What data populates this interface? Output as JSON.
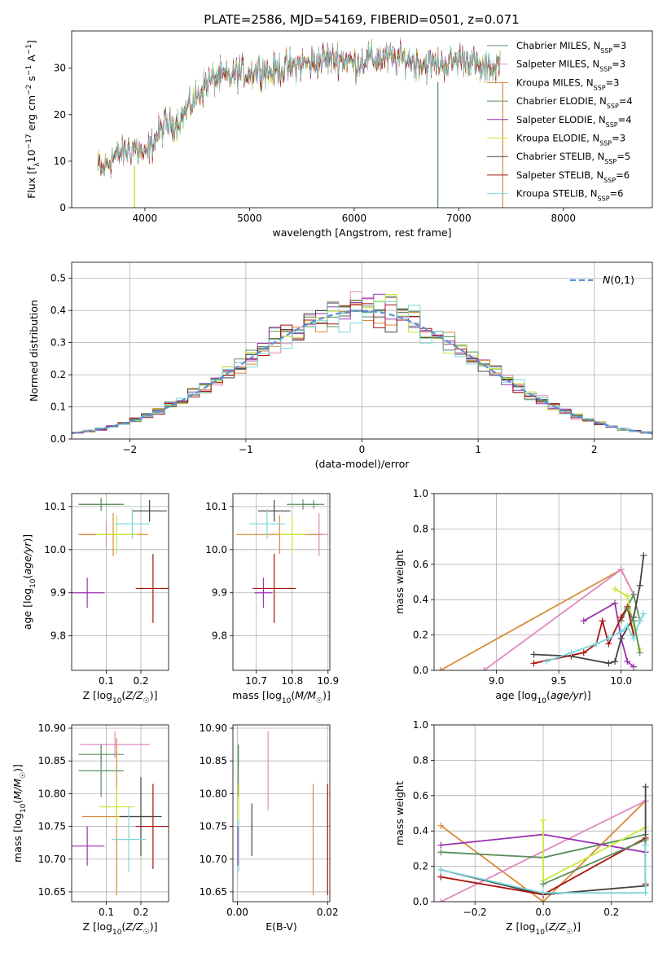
{
  "title": "PLATE=2586, MJD=54169, FIBERID=0501, z=0.071",
  "colors": [
    "#5a8f5c",
    "#e088c0",
    "#d98b38",
    "#5a8f5c",
    "#9b30b0",
    "#c8e838",
    "#444444",
    "#aa1111",
    "#7ad8dc"
  ],
  "chart_data": [
    {
      "id": "spectrum",
      "type": "line",
      "xlabel": "wavelength [Angstrom, rest frame]",
      "ylabel": "Flux [f_λ 10^-17 erg cm^-2 s^-1 A^-1]",
      "xlim": [
        3300,
        8850
      ],
      "ylim": [
        0,
        38
      ],
      "xticks": [
        4000,
        5000,
        6000,
        7000,
        8000
      ],
      "yticks": [
        0,
        10,
        20,
        30
      ],
      "envelope": {
        "x": [
          3550,
          3600,
          3700,
          3800,
          3900,
          4000,
          4100,
          4200,
          4300,
          4400,
          4500,
          4600,
          4700,
          4800,
          4900,
          5000,
          5100,
          5200,
          5300,
          5400,
          5500,
          5600,
          5700,
          5800,
          5900,
          6000,
          6100,
          6200,
          6300,
          6400,
          6500,
          6600,
          6700,
          6800,
          6900,
          7000,
          7100,
          7200,
          7300,
          7400
        ],
        "y": [
          9,
          8,
          11,
          12,
          13,
          11,
          15,
          18,
          18,
          21,
          24,
          27,
          28,
          28,
          29,
          29,
          30,
          29,
          30,
          30,
          31,
          31,
          32,
          32,
          32,
          31,
          32,
          32,
          32,
          32,
          32,
          31,
          31,
          31,
          31,
          32,
          32,
          30,
          30,
          31
        ]
      },
      "legend": [
        {
          "label": "Chabrier MILES, N",
          "sub": "SSP",
          "suffix": "=3"
        },
        {
          "label": "Salpeter MILES, N",
          "sub": "SSP",
          "suffix": "=3"
        },
        {
          "label": "Kroupa MILES, N",
          "sub": "SSP",
          "suffix": "=3"
        },
        {
          "label": "Chabrier ELODIE, N",
          "sub": "SSP",
          "suffix": "=4"
        },
        {
          "label": "Salpeter ELODIE, N",
          "sub": "SSP",
          "suffix": "=4"
        },
        {
          "label": "Kroupa ELODIE, N",
          "sub": "SSP",
          "suffix": "=3"
        },
        {
          "label": "Chabrier STELIB, N",
          "sub": "SSP",
          "suffix": "=5"
        },
        {
          "label": "Salpeter STELIB, N",
          "sub": "SSP",
          "suffix": "=6"
        },
        {
          "label": "Kroupa STELIB, N",
          "sub": "SSP",
          "suffix": "=6"
        }
      ]
    },
    {
      "id": "residuals",
      "type": "histogram",
      "xlabel": "(data-model)/error",
      "ylabel": "Normed distribution",
      "xlim": [
        -2.5,
        2.5
      ],
      "ylim": [
        0,
        0.55
      ],
      "xticks": [
        -2,
        -1,
        0,
        1,
        2
      ],
      "yticks": [
        0.0,
        0.1,
        0.2,
        0.3,
        0.4,
        0.5
      ],
      "bin_width": 0.1,
      "legend": "N(0,1)",
      "grid": true
    },
    {
      "id": "age_vs_z",
      "type": "errorbar",
      "xlabel": "Z [log10(Z/Z☉)]",
      "ylabel": "age [log10(age/yr)]",
      "xlim": [
        0.0,
        0.28
      ],
      "ylim": [
        9.72,
        10.13
      ],
      "xticks": [
        0.1,
        0.2
      ],
      "yticks": [
        9.8,
        9.9,
        10.0,
        10.1
      ],
      "points": [
        {
          "x": 0.085,
          "y": 10.105,
          "xerr": 0.065,
          "yerr": 0.015,
          "c": 0
        },
        {
          "x": 0.1,
          "y": 10.035,
          "xerr": 0.08,
          "yerr": 0.03,
          "c": 1
        },
        {
          "x": 0.12,
          "y": 10.035,
          "xerr": 0.1,
          "yerr": 0.05,
          "c": 2
        },
        {
          "x": 0.085,
          "y": 10.105,
          "xerr": 0.065,
          "yerr": 0.01,
          "c": 3
        },
        {
          "x": 0.045,
          "y": 9.9,
          "xerr": 0.05,
          "yerr": 0.035,
          "c": 4
        },
        {
          "x": 0.13,
          "y": 10.035,
          "xerr": 0.06,
          "yerr": 0.045,
          "c": 5
        },
        {
          "x": 0.225,
          "y": 10.09,
          "xerr": 0.05,
          "yerr": 0.025,
          "c": 6
        },
        {
          "x": 0.235,
          "y": 9.91,
          "xerr": 0.05,
          "yerr": 0.08,
          "c": 7
        },
        {
          "x": 0.175,
          "y": 10.06,
          "xerr": 0.05,
          "yerr": 0.035,
          "c": 8
        }
      ]
    },
    {
      "id": "age_vs_mass",
      "type": "errorbar",
      "xlabel": "mass [log10(M/M☉)]",
      "ylabel": "",
      "xlim": [
        10.635,
        10.905
      ],
      "ylim": [
        9.72,
        10.13
      ],
      "xticks": [
        10.7,
        10.8,
        10.9
      ],
      "yticks": [
        9.8,
        9.9,
        10.0,
        10.1
      ],
      "points": [
        {
          "x": 10.83,
          "y": 10.105,
          "xerr": 0.045,
          "yerr": 0.012,
          "c": 0
        },
        {
          "x": 10.875,
          "y": 10.035,
          "xerr": 0.025,
          "yerr": 0.05,
          "c": 1
        },
        {
          "x": 10.765,
          "y": 10.035,
          "xerr": 0.12,
          "yerr": 0.045,
          "c": 2
        },
        {
          "x": 10.86,
          "y": 10.105,
          "xerr": 0.03,
          "yerr": 0.01,
          "c": 3
        },
        {
          "x": 10.72,
          "y": 9.9,
          "xerr": 0.025,
          "yerr": 0.035,
          "c": 4
        },
        {
          "x": 10.8,
          "y": 10.035,
          "xerr": 0.035,
          "yerr": 0.045,
          "c": 5
        },
        {
          "x": 10.75,
          "y": 10.09,
          "xerr": 0.045,
          "yerr": 0.025,
          "c": 6
        },
        {
          "x": 10.75,
          "y": 9.91,
          "xerr": 0.06,
          "yerr": 0.08,
          "c": 7
        },
        {
          "x": 10.73,
          "y": 10.06,
          "xerr": 0.05,
          "yerr": 0.035,
          "c": 8
        }
      ]
    },
    {
      "id": "weight_vs_age",
      "type": "line",
      "xlabel": "age [log10(age/yr)]",
      "ylabel": "mass weight",
      "xlim": [
        8.5,
        10.25
      ],
      "ylim": [
        0.0,
        1.0
      ],
      "xticks": [
        9.0,
        9.5,
        10.0
      ],
      "yticks": [
        0.0,
        0.2,
        0.4,
        0.6,
        0.8,
        1.0
      ],
      "series": [
        {
          "c": 2,
          "x": [
            8.55,
            10.0,
            10.1
          ],
          "y": [
            0.0,
            0.57,
            0.43
          ]
        },
        {
          "c": 1,
          "x": [
            8.9,
            10.0,
            10.1
          ],
          "y": [
            0.0,
            0.57,
            0.43
          ]
        },
        {
          "c": 0,
          "x": [
            10.0,
            10.1,
            10.15
          ],
          "y": [
            0.28,
            0.43,
            0.28
          ]
        },
        {
          "c": 4,
          "x": [
            9.7,
            9.95,
            10.0,
            10.05,
            10.1
          ],
          "y": [
            0.28,
            0.38,
            0.18,
            0.05,
            0.02
          ]
        },
        {
          "c": 5,
          "x": [
            9.95,
            10.05,
            10.1,
            10.15
          ],
          "y": [
            0.46,
            0.42,
            0.25,
            0.12
          ]
        },
        {
          "c": 6,
          "x": [
            9.3,
            9.6,
            9.9,
            9.95,
            10.0,
            10.1,
            10.15,
            10.18
          ],
          "y": [
            0.09,
            0.08,
            0.04,
            0.05,
            0.18,
            0.3,
            0.48,
            0.65
          ]
        },
        {
          "c": 7,
          "x": [
            9.3,
            9.7,
            9.8,
            9.85,
            9.9,
            10.0,
            10.05,
            10.1
          ],
          "y": [
            0.04,
            0.1,
            0.15,
            0.28,
            0.15,
            0.3,
            0.36,
            0.2
          ]
        },
        {
          "c": 8,
          "x": [
            9.4,
            9.6,
            9.8,
            9.9,
            10.0,
            10.05,
            10.1,
            10.15,
            10.18
          ],
          "y": [
            0.05,
            0.1,
            0.15,
            0.18,
            0.22,
            0.25,
            0.18,
            0.28,
            0.32
          ]
        },
        {
          "c": 3,
          "x": [
            10.05,
            10.1,
            10.15
          ],
          "y": [
            0.35,
            0.28,
            0.1
          ]
        }
      ]
    },
    {
      "id": "mass_vs_z",
      "type": "errorbar",
      "xlabel": "Z [log10(Z/Z☉)]",
      "ylabel": "mass [log10(M/M☉)]",
      "xlim": [
        0.0,
        0.28
      ],
      "ylim": [
        10.635,
        10.905
      ],
      "xticks": [
        0.1,
        0.2
      ],
      "yticks": [
        10.65,
        10.7,
        10.75,
        10.8,
        10.85,
        10.9
      ],
      "points": [
        {
          "x": 0.085,
          "y": 10.86,
          "xerr": 0.065,
          "yerr": 0.015,
          "c": 0
        },
        {
          "x": 0.125,
          "y": 10.875,
          "xerr": 0.1,
          "yerr": 0.02,
          "c": 1
        },
        {
          "x": 0.13,
          "y": 10.765,
          "xerr": 0.1,
          "yerr": 0.12,
          "c": 2
        },
        {
          "x": 0.085,
          "y": 10.835,
          "xerr": 0.065,
          "yerr": 0.04,
          "c": 3
        },
        {
          "x": 0.045,
          "y": 10.72,
          "xerr": 0.05,
          "yerr": 0.03,
          "c": 4
        },
        {
          "x": 0.13,
          "y": 10.78,
          "xerr": 0.05,
          "yerr": 0.03,
          "c": 5
        },
        {
          "x": 0.2,
          "y": 10.765,
          "xerr": 0.06,
          "yerr": 0.06,
          "c": 6
        },
        {
          "x": 0.235,
          "y": 10.75,
          "xerr": 0.05,
          "yerr": 0.065,
          "c": 7
        },
        {
          "x": 0.165,
          "y": 10.73,
          "xerr": 0.05,
          "yerr": 0.05,
          "c": 8
        }
      ]
    },
    {
      "id": "mass_vs_ebv",
      "type": "errorbar",
      "xlabel": "E(B-V)",
      "ylabel": "",
      "xlim": [
        -0.001,
        0.0205
      ],
      "ylim": [
        10.635,
        10.905
      ],
      "xticks": [
        0.0,
        0.02
      ],
      "xtick_labels": [
        "0.00",
        "0.02"
      ],
      "yticks": [
        10.65,
        10.7,
        10.75,
        10.8,
        10.85,
        10.9
      ],
      "points": [
        {
          "x": 0.0002,
          "y": 10.835,
          "xerr": 0,
          "yerr": 0.04,
          "c": 0
        },
        {
          "x": 0.0068,
          "y": 10.835,
          "xerr": 0,
          "yerr": 0.06,
          "c": 1
        },
        {
          "x": 0.0168,
          "y": 10.73,
          "xerr": 0,
          "yerr": 0.085,
          "c": 2
        },
        {
          "x": 0.0002,
          "y": 10.86,
          "xerr": 0,
          "yerr": 0.015,
          "c": 3
        },
        {
          "x": 0.0001,
          "y": 10.72,
          "xerr": 0,
          "yerr": 0.03,
          "c": 4
        },
        {
          "x": 0.0003,
          "y": 10.785,
          "xerr": 0,
          "yerr": 0.03,
          "c": 5
        },
        {
          "x": 0.0032,
          "y": 10.745,
          "xerr": 0,
          "yerr": 0.04,
          "c": 6
        },
        {
          "x": 0.02,
          "y": 10.73,
          "xerr": 0,
          "yerr": 0.085,
          "c": 7
        },
        {
          "x": 0.0003,
          "y": 10.72,
          "xerr": 0,
          "yerr": 0.04,
          "c": 8
        }
      ]
    },
    {
      "id": "weight_vs_z",
      "type": "line",
      "xlabel": "Z [log10(Z/Z☉)]",
      "ylabel": "mass weight",
      "xlim": [
        -0.32,
        0.32
      ],
      "ylim": [
        0.0,
        1.0
      ],
      "xticks": [
        -0.2,
        0.0,
        0.2
      ],
      "yticks": [
        0.0,
        0.2,
        0.4,
        0.6,
        0.8,
        1.0
      ],
      "series": [
        {
          "c": 2,
          "x": [
            -0.3,
            0.0,
            0.3
          ],
          "y": [
            0.43,
            0.0,
            0.57
          ]
        },
        {
          "c": 1,
          "x": [
            -0.3,
            0.3
          ],
          "y": [
            0.0,
            0.57
          ]
        },
        {
          "c": 0,
          "x": [
            -0.3,
            0.0,
            0.3
          ],
          "y": [
            0.28,
            0.25,
            0.38
          ]
        },
        {
          "c": 4,
          "x": [
            -0.3,
            0.0,
            0.3
          ],
          "y": [
            0.32,
            0.38,
            0.28
          ]
        },
        {
          "c": 5,
          "x": [
            0.0,
            0.0,
            0.3
          ],
          "y": [
            0.46,
            0.12,
            0.42
          ]
        },
        {
          "c": 6,
          "x": [
            -0.3,
            0.0,
            0.3,
            0.3
          ],
          "y": [
            0.18,
            0.04,
            0.09,
            0.65
          ]
        },
        {
          "c": 7,
          "x": [
            -0.3,
            0.0,
            0.3,
            0.3
          ],
          "y": [
            0.14,
            0.04,
            0.36,
            0.1
          ]
        },
        {
          "c": 8,
          "x": [
            -0.3,
            0.0,
            0.3,
            0.3
          ],
          "y": [
            0.18,
            0.05,
            0.05,
            0.32
          ]
        },
        {
          "c": 3,
          "x": [
            0.0,
            0.3
          ],
          "y": [
            0.1,
            0.35
          ]
        }
      ]
    }
  ]
}
